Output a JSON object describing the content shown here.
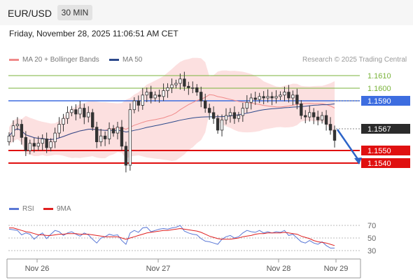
{
  "header": {
    "symbol": "EUR/USD",
    "timeframe": "30 MIN"
  },
  "datetime": "Friday, November 28, 2025 11:06:51 AM CET",
  "copyright": "Research © 2025 Trading Central",
  "legend": {
    "ma20": {
      "label": "MA 20 + Bollinger Bands",
      "color": "#f08a8a"
    },
    "ma50": {
      "label": "MA 50",
      "color": "#2d4a8c"
    },
    "rsi": {
      "label": "RSI",
      "color": "#5a78d6"
    },
    "ma9": {
      "label": "9MA",
      "color": "#e02020"
    }
  },
  "price_levels": [
    {
      "label": "1.1610",
      "kind": "resistance",
      "color": "#7ab33b"
    },
    {
      "label": "1.1600",
      "kind": "resistance",
      "color": "#7ab33b"
    },
    {
      "label": "1.1590",
      "kind": "pivot",
      "color": "#3d6de0"
    },
    {
      "label": "1.1567",
      "kind": "last-price",
      "color": "#2b2b2b"
    },
    {
      "label": "1.1550",
      "kind": "support",
      "color": "#e01010"
    },
    {
      "label": "1.1540",
      "kind": "support",
      "color": "#e01010"
    }
  ],
  "rsi_axis": [
    "70",
    "50",
    "30"
  ],
  "x_axis": [
    "Nov 26",
    "Nov 27",
    "Nov 28",
    "Nov 29"
  ],
  "chart_data": {
    "type": "candlestick",
    "price_range": [
      1.1528,
      1.1618
    ],
    "close": [
      1.157,
      1.1577,
      1.1578,
      1.1569,
      1.156,
      1.1565,
      1.1563,
      1.1565,
      1.1568,
      1.1562,
      1.1566,
      1.1572,
      1.1578,
      1.1582,
      1.1586,
      1.1588,
      1.1585,
      1.1589,
      1.1583,
      1.1586,
      1.1576,
      1.1566,
      1.157,
      1.1568,
      1.1575,
      1.1572,
      1.1576,
      1.1563,
      1.155,
      1.1588,
      1.1594,
      1.1591,
      1.1598,
      1.16,
      1.1596,
      1.1598,
      1.1597,
      1.1601,
      1.1603,
      1.1605,
      1.1606,
      1.1609,
      1.1604,
      1.1603,
      1.1603,
      1.16,
      1.1594,
      1.1589,
      1.1586,
      1.1582,
      1.1574,
      1.1581,
      1.1584,
      1.1586,
      1.1582,
      1.1584,
      1.1589,
      1.1593,
      1.1596,
      1.1595,
      1.1597,
      1.1596,
      1.1597,
      1.1596,
      1.1597,
      1.1598,
      1.16,
      1.1596,
      1.1598,
      1.1592,
      1.1584,
      1.1583,
      1.1586,
      1.1583,
      1.1581,
      1.1584,
      1.1578,
      1.1574,
      1.1567
    ],
    "rsi": [
      64,
      63,
      62,
      55,
      58,
      56,
      48,
      54,
      58,
      49,
      56,
      62,
      60,
      54,
      58,
      60,
      56,
      53,
      58,
      55,
      48,
      42,
      50,
      52,
      56,
      54,
      55,
      46,
      40,
      58,
      62,
      59,
      66,
      67,
      60,
      62,
      64,
      65,
      64,
      66,
      67,
      70,
      61,
      58,
      56,
      55,
      49,
      45,
      44,
      42,
      40,
      48,
      52,
      54,
      50,
      52,
      58,
      62,
      60,
      59,
      62,
      58,
      60,
      58,
      60,
      59,
      62,
      54,
      56,
      50,
      44,
      42,
      46,
      42,
      40,
      44,
      38,
      34,
      34
    ],
    "ma9": [
      66,
      66,
      64,
      62,
      60,
      59,
      57,
      55,
      55,
      54,
      54,
      55,
      56,
      56,
      57,
      57,
      57,
      56,
      56,
      56,
      55,
      54,
      53,
      52,
      52,
      52,
      52,
      50,
      48,
      50,
      52,
      54,
      56,
      58,
      59,
      60,
      61,
      62,
      62,
      63,
      64,
      65,
      64,
      63,
      62,
      61,
      59,
      56,
      53,
      51,
      49,
      48,
      48,
      48,
      49,
      50,
      52,
      53,
      54,
      56,
      57,
      57,
      58,
      58,
      58,
      58,
      59,
      58,
      57,
      56,
      53,
      51,
      49,
      46,
      44,
      43,
      42,
      40,
      38
    ]
  }
}
